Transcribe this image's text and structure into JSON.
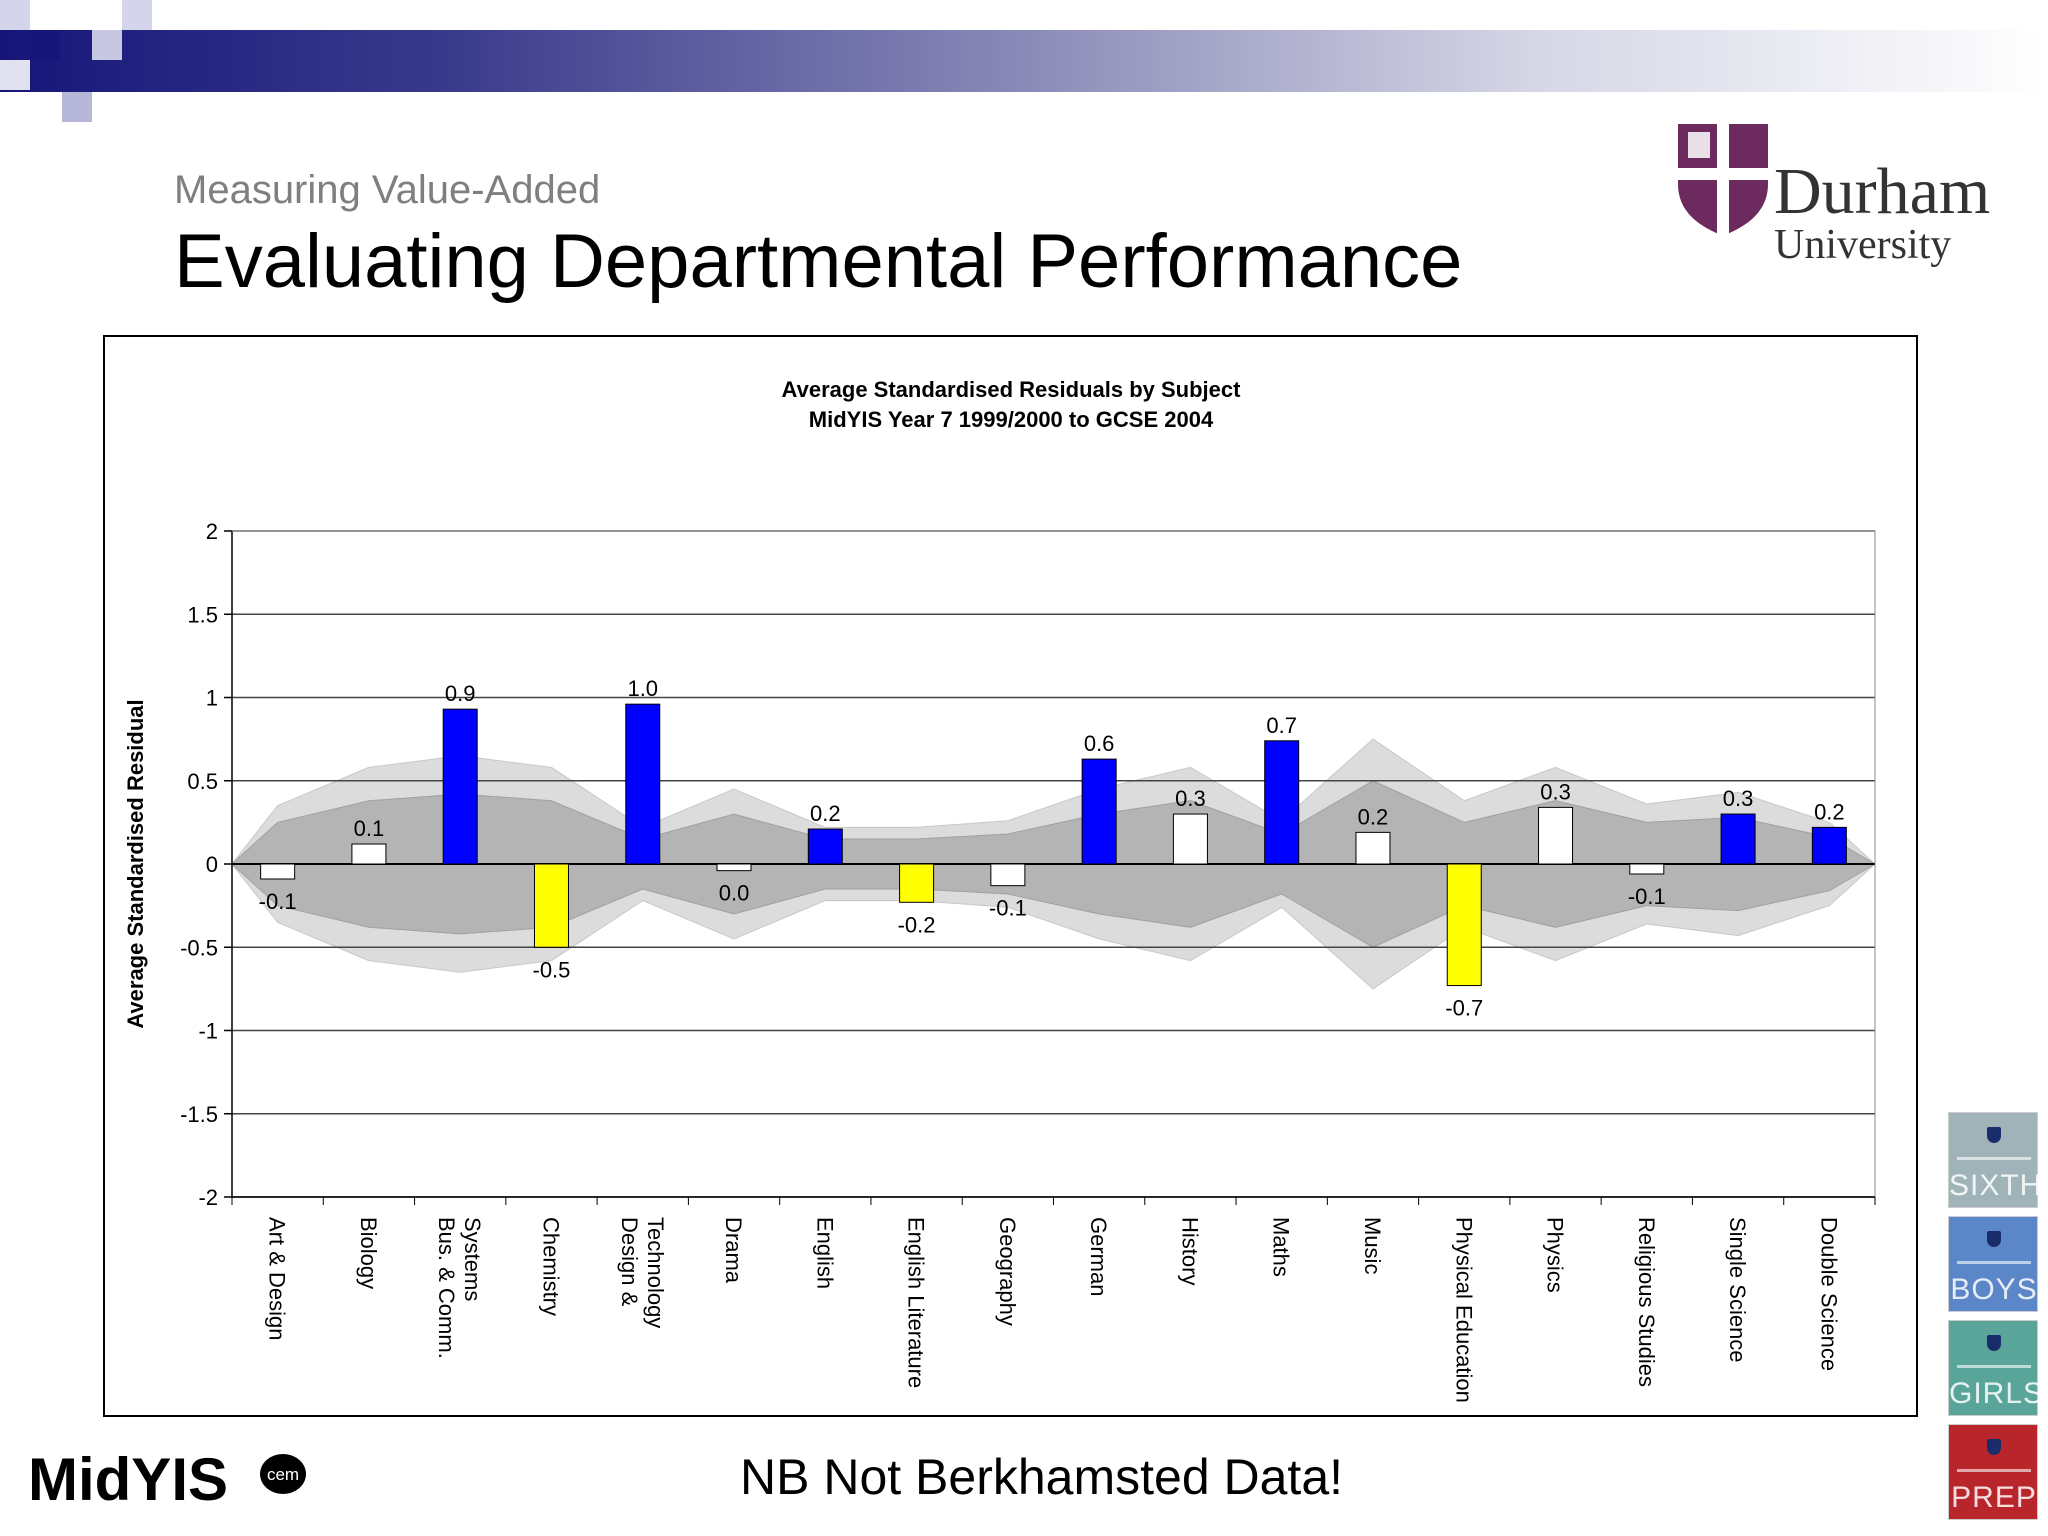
{
  "slide": {
    "subtitle": "Measuring Value-Added",
    "title": "Evaluating Departmental Performance",
    "footnote": "NB Not Berkhamsted Data!"
  },
  "logos": {
    "durham_line1": "Durham",
    "durham_line2": "University",
    "midyis": "MidYIS",
    "cem": "cem"
  },
  "badges": [
    {
      "label": "SIXTH",
      "color": "#9fb3b8"
    },
    {
      "label": "BOYS",
      "color": "#5b86c8"
    },
    {
      "label": "GIRLS",
      "color": "#5aa59a"
    },
    {
      "label": "PREP",
      "color": "#b8262c"
    }
  ],
  "colors": {
    "positive_significant": "#0000ff",
    "negative_significant": "#ffff00",
    "not_significant": "#ffffff",
    "inner_band": "#b4b4b4",
    "outer_band": "#dcdcdc",
    "durham_purple": "#6d2a5e"
  },
  "chart_data": {
    "type": "bar",
    "title": "Average Standardised Residuals by Subject",
    "subtitle": "MidYIS Year 7 1999/2000 to GCSE 2004",
    "xlabel": "",
    "ylabel": "Average Standardised Residual",
    "ylim": [
      -2,
      2
    ],
    "yticks": [
      "2",
      "1.5",
      "1",
      "0.5",
      "0",
      "-0.5",
      "-1",
      "-1.5",
      "-2"
    ],
    "grid": true,
    "categories": [
      "Art & Design",
      "Biology",
      "Bus. & Comm. Systems",
      "Chemistry",
      "Design & Technology",
      "Drama",
      "English",
      "English Literature",
      "Geography",
      "German",
      "History",
      "Maths",
      "Music",
      "Physical Education",
      "Physics",
      "Religious Studies",
      "Single Science",
      "Double Science"
    ],
    "values": [
      -0.09,
      0.12,
      0.93,
      -0.5,
      0.96,
      -0.04,
      0.21,
      -0.23,
      -0.13,
      0.63,
      0.3,
      0.74,
      0.19,
      -0.73,
      0.34,
      -0.06,
      0.3,
      0.22
    ],
    "data_labels": [
      "-0.1",
      "0.1",
      "0.9",
      "-0.5",
      "1.0",
      "0.0",
      "0.2",
      "-0.2",
      "-0.1",
      "0.6",
      "0.3",
      "0.7",
      "0.2",
      "-0.7",
      "0.3",
      "-0.1",
      "0.3",
      "0.2"
    ],
    "significance": [
      "none",
      "none",
      "positive",
      "negative",
      "positive",
      "none",
      "positive",
      "negative",
      "none",
      "positive",
      "none",
      "positive",
      "none",
      "negative",
      "none",
      "none",
      "positive",
      "positive"
    ],
    "confidence_band_inner": [
      0.25,
      0.38,
      0.42,
      0.38,
      0.15,
      0.3,
      0.15,
      0.15,
      0.18,
      0.3,
      0.38,
      0.18,
      0.5,
      0.25,
      0.38,
      0.25,
      0.28,
      0.16
    ],
    "confidence_band_outer": [
      0.35,
      0.58,
      0.65,
      0.58,
      0.22,
      0.45,
      0.22,
      0.22,
      0.26,
      0.45,
      0.58,
      0.26,
      0.75,
      0.38,
      0.58,
      0.36,
      0.43,
      0.25
    ]
  }
}
